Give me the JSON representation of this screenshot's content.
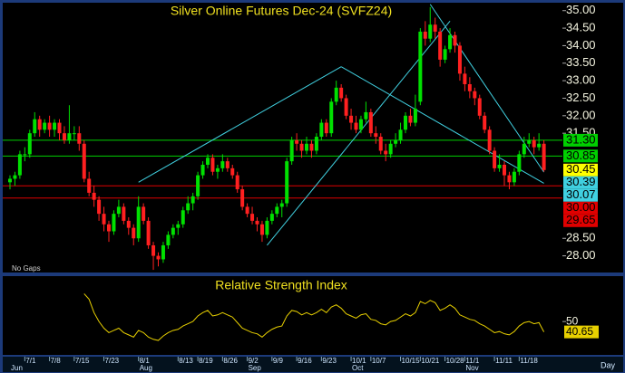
{
  "chart_data": {
    "type": "candlestick",
    "title": "Silver Online Futures Dec-24 (SVFZ24)",
    "note": "No Gaps",
    "period_label": "Day",
    "ylim": [
      27.55,
      35.2
    ],
    "yticks": [
      {
        "value": 35,
        "label": "35.00"
      },
      {
        "value": 34.5,
        "label": "34.50"
      },
      {
        "value": 34,
        "label": "34.00"
      },
      {
        "value": 33.5,
        "label": "33.50"
      },
      {
        "value": 33,
        "label": "33.00"
      },
      {
        "value": 32.5,
        "label": "32.50"
      },
      {
        "value": 32,
        "label": "32.00"
      },
      {
        "value": 31.5,
        "label": "31.50"
      },
      {
        "value": 28.5,
        "label": "28.50"
      },
      {
        "value": 28,
        "label": "28.00"
      }
    ],
    "up_color": "#00e000",
    "down_color": "#ff2020",
    "last_price_color": "#ffff00",
    "categories": [
      null,
      null,
      null,
      "7/1",
      null,
      null,
      null,
      null,
      "7/8",
      null,
      null,
      null,
      null,
      "7/15",
      null,
      null,
      null,
      null,
      null,
      "7/23",
      null,
      null,
      null,
      null,
      null,
      null,
      "8/1",
      null,
      null,
      null,
      null,
      null,
      null,
      null,
      "8/13",
      null,
      null,
      null,
      "8/19",
      null,
      null,
      null,
      null,
      "8/26",
      null,
      null,
      null,
      null,
      "9/2",
      null,
      null,
      null,
      null,
      "9/9",
      null,
      null,
      null,
      null,
      "9/16",
      null,
      null,
      null,
      null,
      "9/23",
      null,
      null,
      null,
      null,
      null,
      "10/1",
      null,
      null,
      null,
      "10/7",
      null,
      null,
      null,
      null,
      null,
      "10/15",
      null,
      null,
      null,
      "10/21",
      null,
      null,
      null,
      null,
      "10/28",
      null,
      null,
      null,
      "11/1",
      null,
      null,
      null,
      null,
      null,
      "11/11",
      null,
      null,
      null,
      null,
      "11/18",
      null,
      null,
      null,
      null,
      null
    ],
    "months": [
      "Jun",
      null,
      null,
      null,
      null,
      null,
      null,
      null,
      null,
      null,
      null,
      null,
      null,
      null,
      null,
      null,
      null,
      null,
      null,
      null,
      null,
      null,
      null,
      null,
      null,
      null,
      "Aug",
      null,
      null,
      null,
      null,
      null,
      null,
      null,
      null,
      null,
      null,
      null,
      null,
      null,
      null,
      null,
      null,
      null,
      null,
      null,
      null,
      null,
      "Sep",
      null,
      null,
      null,
      null,
      null,
      null,
      null,
      null,
      null,
      null,
      null,
      null,
      null,
      null,
      null,
      null,
      null,
      null,
      null,
      null,
      "Oct",
      null,
      null,
      null,
      null,
      null,
      null,
      null,
      null,
      null,
      null,
      null,
      null,
      null,
      null,
      null,
      null,
      null,
      null,
      null,
      null,
      null,
      null,
      "Nov",
      null,
      null,
      null,
      null,
      null,
      null,
      null,
      null,
      null,
      null,
      null,
      null,
      null,
      null,
      null,
      null
    ],
    "ohlc": [
      [
        30.1,
        30.3,
        29.9,
        30.2
      ],
      [
        30.2,
        30.4,
        30.0,
        30.3
      ],
      [
        30.3,
        31.0,
        30.2,
        30.9
      ],
      [
        30.9,
        31.1,
        30.7,
        30.9
      ],
      [
        30.9,
        31.6,
        30.8,
        31.5
      ],
      [
        31.5,
        32.1,
        31.4,
        31.9
      ],
      [
        31.9,
        32.0,
        31.4,
        31.6
      ],
      [
        31.6,
        31.9,
        31.5,
        31.8
      ],
      [
        31.8,
        32.0,
        31.4,
        31.6
      ],
      [
        31.6,
        31.9,
        31.4,
        31.8
      ],
      [
        31.8,
        31.9,
        31.3,
        31.5
      ],
      [
        31.5,
        31.7,
        31.2,
        31.3
      ],
      [
        31.3,
        32.3,
        31.2,
        31.5
      ],
      [
        31.5,
        31.7,
        31.3,
        31.5
      ],
      [
        31.5,
        31.7,
        31.0,
        31.2
      ],
      [
        31.2,
        31.3,
        30.1,
        30.2
      ],
      [
        30.2,
        30.4,
        29.7,
        29.8
      ],
      [
        29.8,
        30.0,
        29.4,
        29.6
      ],
      [
        29.6,
        29.7,
        29.0,
        29.2
      ],
      [
        29.2,
        29.4,
        28.7,
        28.9
      ],
      [
        28.9,
        29.0,
        28.4,
        28.7
      ],
      [
        28.7,
        29.3,
        28.6,
        29.2
      ],
      [
        29.2,
        29.6,
        29.1,
        29.4
      ],
      [
        29.4,
        29.5,
        28.9,
        29.0
      ],
      [
        29.0,
        29.1,
        28.6,
        28.8
      ],
      [
        28.8,
        28.9,
        28.3,
        28.5
      ],
      [
        28.5,
        29.7,
        28.4,
        29.4
      ],
      [
        29.4,
        29.5,
        28.9,
        29.0
      ],
      [
        29.0,
        29.1,
        28.2,
        28.3
      ],
      [
        28.3,
        28.4,
        27.6,
        28.0
      ],
      [
        28.0,
        28.1,
        27.7,
        27.9
      ],
      [
        27.9,
        28.4,
        27.8,
        28.3
      ],
      [
        28.3,
        28.7,
        28.2,
        28.6
      ],
      [
        28.6,
        28.9,
        28.5,
        28.8
      ],
      [
        28.8,
        29.0,
        28.6,
        28.9
      ],
      [
        28.9,
        29.4,
        28.8,
        29.3
      ],
      [
        29.3,
        29.7,
        29.2,
        29.5
      ],
      [
        29.5,
        29.8,
        29.3,
        29.7
      ],
      [
        29.7,
        30.4,
        29.6,
        30.3
      ],
      [
        30.3,
        30.7,
        30.2,
        30.6
      ],
      [
        30.6,
        30.9,
        30.5,
        30.8
      ],
      [
        30.8,
        30.9,
        30.3,
        30.4
      ],
      [
        30.4,
        30.6,
        30.2,
        30.5
      ],
      [
        30.5,
        30.9,
        30.4,
        30.7
      ],
      [
        30.7,
        30.8,
        30.4,
        30.5
      ],
      [
        30.5,
        30.6,
        30.2,
        30.3
      ],
      [
        30.3,
        30.4,
        29.8,
        29.9
      ],
      [
        29.9,
        30.0,
        29.3,
        29.4
      ],
      [
        29.4,
        29.5,
        29.1,
        29.2
      ],
      [
        29.2,
        29.4,
        28.9,
        29.0
      ],
      [
        29.0,
        29.1,
        28.7,
        28.9
      ],
      [
        28.9,
        29.0,
        28.4,
        28.6
      ],
      [
        28.6,
        29.1,
        28.5,
        29.0
      ],
      [
        29.0,
        29.3,
        28.9,
        29.2
      ],
      [
        29.2,
        29.5,
        29.1,
        29.4
      ],
      [
        29.4,
        29.6,
        29.1,
        29.5
      ],
      [
        29.5,
        30.8,
        29.4,
        30.7
      ],
      [
        30.7,
        31.4,
        30.6,
        31.3
      ],
      [
        31.3,
        31.5,
        31.0,
        31.2
      ],
      [
        31.2,
        31.3,
        30.8,
        31.0
      ],
      [
        31.0,
        31.4,
        30.9,
        31.2
      ],
      [
        31.2,
        31.3,
        30.8,
        31.0
      ],
      [
        31.0,
        31.5,
        30.9,
        31.4
      ],
      [
        31.4,
        31.9,
        31.3,
        31.8
      ],
      [
        31.8,
        31.9,
        31.4,
        31.5
      ],
      [
        31.5,
        32.5,
        31.4,
        32.4
      ],
      [
        32.4,
        33.0,
        32.3,
        32.8
      ],
      [
        32.8,
        32.9,
        32.4,
        32.5
      ],
      [
        32.5,
        32.6,
        31.9,
        32.0
      ],
      [
        32.0,
        32.2,
        31.6,
        31.8
      ],
      [
        31.8,
        32.0,
        31.5,
        31.6
      ],
      [
        31.6,
        32.0,
        31.5,
        31.9
      ],
      [
        31.9,
        32.4,
        31.8,
        32.1
      ],
      [
        32.1,
        32.2,
        31.4,
        31.5
      ],
      [
        31.5,
        31.7,
        31.2,
        31.4
      ],
      [
        31.4,
        31.5,
        30.9,
        31.0
      ],
      [
        31.0,
        31.2,
        30.7,
        30.9
      ],
      [
        30.9,
        31.3,
        30.8,
        31.2
      ],
      [
        31.2,
        31.5,
        31.1,
        31.3
      ],
      [
        31.3,
        31.8,
        31.2,
        31.6
      ],
      [
        31.6,
        32.1,
        31.5,
        32.0
      ],
      [
        32.0,
        32.2,
        31.7,
        31.8
      ],
      [
        31.8,
        32.6,
        31.7,
        32.2
      ],
      [
        32.4,
        34.5,
        32.3,
        34.4
      ],
      [
        34.4,
        34.7,
        34.0,
        34.2
      ],
      [
        34.2,
        35.1,
        34.1,
        34.6
      ],
      [
        34.6,
        34.8,
        34.2,
        34.4
      ],
      [
        34.4,
        34.5,
        33.4,
        33.6
      ],
      [
        33.6,
        34.0,
        33.5,
        33.9
      ],
      [
        33.9,
        34.5,
        33.8,
        34.3
      ],
      [
        34.3,
        34.4,
        33.8,
        34.0
      ],
      [
        34.0,
        34.1,
        33.0,
        33.2
      ],
      [
        33.2,
        33.4,
        32.7,
        32.9
      ],
      [
        32.9,
        33.1,
        32.5,
        32.7
      ],
      [
        32.7,
        32.8,
        32.3,
        32.5
      ],
      [
        32.5,
        32.6,
        31.9,
        32.0
      ],
      [
        32.0,
        32.1,
        31.5,
        31.6
      ],
      [
        31.6,
        31.7,
        30.9,
        31.0
      ],
      [
        31.0,
        31.1,
        30.4,
        30.5
      ],
      [
        30.5,
        30.9,
        30.4,
        30.6
      ],
      [
        30.6,
        30.7,
        30.0,
        30.3
      ],
      [
        30.3,
        30.4,
        29.9,
        30.1
      ],
      [
        30.1,
        30.5,
        30.0,
        30.4
      ],
      [
        30.4,
        31.0,
        30.3,
        30.9
      ],
      [
        30.9,
        31.4,
        30.8,
        31.2
      ],
      [
        31.2,
        31.5,
        31.1,
        31.3
      ],
      [
        31.3,
        31.4,
        30.9,
        31.1
      ],
      [
        31.1,
        31.5,
        31.0,
        31.2
      ],
      [
        31.2,
        31.3,
        30.4,
        30.45
      ]
    ],
    "hlines": [
      {
        "value": 31.3,
        "label": "31.30",
        "color": "#00d000"
      },
      {
        "value": 30.85,
        "label": "30.85",
        "color": "#00d000"
      },
      {
        "value": 30,
        "label": "30.00",
        "color": "#e00000"
      },
      {
        "value": 29.65,
        "label": "29.65",
        "color": "#e00000"
      }
    ],
    "trendline_color": "#40d0e0",
    "trendlines": [
      {
        "points": [
          [
            26,
            30.1
          ],
          [
            67,
            33.4
          ]
        ]
      },
      {
        "points": [
          [
            67,
            33.4
          ],
          [
            108,
            30.07
          ]
        ]
      },
      {
        "points": [
          [
            85,
            35.18
          ],
          [
            108,
            30.39
          ]
        ]
      },
      {
        "points": [
          [
            52,
            28.3
          ],
          [
            89,
            34.7
          ]
        ]
      }
    ],
    "rsi": {
      "title": "Relative Strength Index",
      "color": "#e8d000",
      "ylim": [
        20,
        90
      ],
      "yticks": [
        50
      ],
      "values": [
        null,
        null,
        null,
        null,
        null,
        null,
        null,
        null,
        null,
        null,
        null,
        null,
        null,
        null,
        null,
        75,
        70,
        58,
        50,
        44,
        40,
        42,
        44,
        40,
        38,
        36,
        42,
        40,
        36,
        34,
        33,
        37,
        40,
        42,
        43,
        46,
        48,
        50,
        55,
        58,
        60,
        55,
        56,
        58,
        56,
        54,
        49,
        44,
        42,
        40,
        39,
        36,
        40,
        43,
        45,
        46,
        55,
        60,
        59,
        56,
        58,
        56,
        58,
        61,
        58,
        63,
        65,
        62,
        57,
        55,
        53,
        56,
        57,
        52,
        51,
        48,
        47,
        50,
        51,
        54,
        57,
        55,
        58,
        68,
        66,
        69,
        67,
        60,
        62,
        65,
        62,
        56,
        54,
        52,
        51,
        48,
        46,
        43,
        40,
        41,
        39,
        38,
        41,
        46,
        49,
        50,
        48,
        49,
        40.65
      ]
    }
  }
}
